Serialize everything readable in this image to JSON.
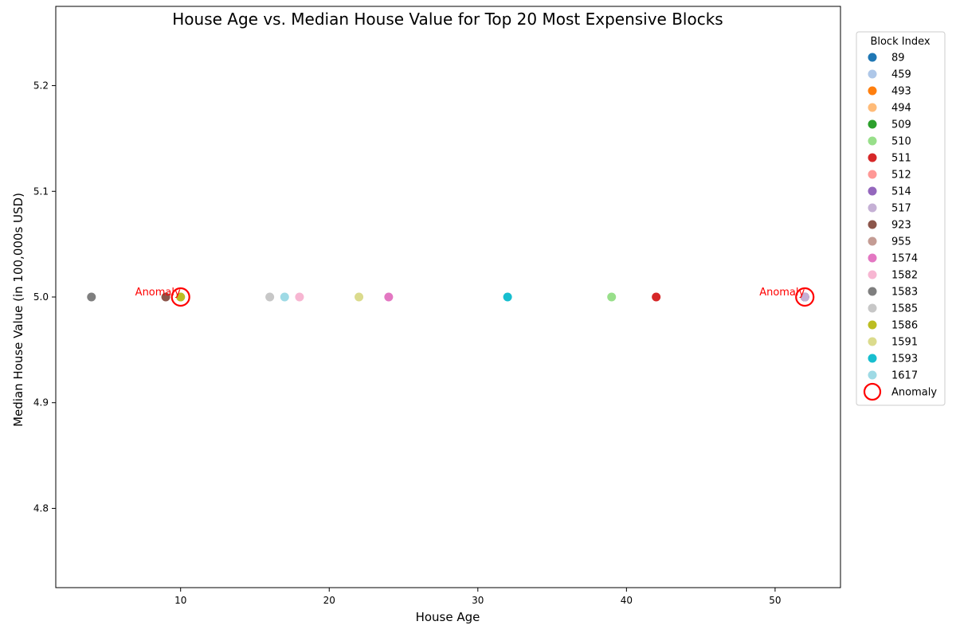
{
  "chart_data": {
    "type": "scatter",
    "title": "House Age vs. Median House Value for Top 20 Most Expensive Blocks",
    "xlabel": "House Age",
    "ylabel": "Median House Value (in 100,000s USD)",
    "xlim": [
      1.6,
      54.4
    ],
    "ylim": [
      4.725,
      5.275
    ],
    "xticks": [
      10,
      20,
      30,
      40,
      50
    ],
    "yticks": [
      4.8,
      4.9,
      5.0,
      5.1,
      5.2
    ],
    "grid": false,
    "legend": {
      "title": "Block Index",
      "placement": "outside-right",
      "anomaly_label": "Anomaly"
    },
    "series": [
      {
        "name": "89",
        "color": "#1f77b4",
        "points": [
          {
            "x": 52,
            "y": 5.0
          }
        ]
      },
      {
        "name": "459",
        "color": "#aec7e8",
        "points": [
          {
            "x": 52,
            "y": 5.0
          }
        ]
      },
      {
        "name": "493",
        "color": "#ff7f0e",
        "points": [
          {
            "x": 52,
            "y": 5.0
          }
        ]
      },
      {
        "name": "494",
        "color": "#ffbb78",
        "points": [
          {
            "x": 52,
            "y": 5.0
          }
        ]
      },
      {
        "name": "509",
        "color": "#2ca02c",
        "points": [
          {
            "x": 52,
            "y": 5.0
          }
        ]
      },
      {
        "name": "510",
        "color": "#98df8a",
        "points": [
          {
            "x": 39,
            "y": 5.0
          }
        ]
      },
      {
        "name": "511",
        "color": "#d62728",
        "points": [
          {
            "x": 42,
            "y": 5.0
          }
        ]
      },
      {
        "name": "512",
        "color": "#ff9896",
        "points": [
          {
            "x": 52,
            "y": 5.0
          }
        ]
      },
      {
        "name": "514",
        "color": "#9467bd",
        "points": [
          {
            "x": 52,
            "y": 5.0
          }
        ]
      },
      {
        "name": "517",
        "color": "#c5b0d5",
        "points": [
          {
            "x": 52,
            "y": 5.0
          }
        ]
      },
      {
        "name": "923",
        "color": "#8c564b",
        "points": [
          {
            "x": 9,
            "y": 5.0
          }
        ]
      },
      {
        "name": "955",
        "color": "#c49c94",
        "points": [
          {
            "x": 10,
            "y": 5.0
          }
        ]
      },
      {
        "name": "1574",
        "color": "#e377c2",
        "points": [
          {
            "x": 24,
            "y": 5.0
          }
        ]
      },
      {
        "name": "1582",
        "color": "#f7b6d2",
        "points": [
          {
            "x": 18,
            "y": 5.0
          }
        ]
      },
      {
        "name": "1583",
        "color": "#7f7f7f",
        "points": [
          {
            "x": 4,
            "y": 5.0
          }
        ]
      },
      {
        "name": "1585",
        "color": "#c7c7c7",
        "points": [
          {
            "x": 16,
            "y": 5.0
          }
        ]
      },
      {
        "name": "1586",
        "color": "#bcbd22",
        "points": [
          {
            "x": 10,
            "y": 5.0
          }
        ]
      },
      {
        "name": "1591",
        "color": "#dbdb8d",
        "points": [
          {
            "x": 22,
            "y": 5.0
          }
        ]
      },
      {
        "name": "1593",
        "color": "#17becf",
        "points": [
          {
            "x": 32,
            "y": 5.0
          }
        ]
      },
      {
        "name": "1617",
        "color": "#9edae5",
        "points": [
          {
            "x": 17,
            "y": 5.0
          }
        ]
      }
    ],
    "anomalies": [
      {
        "x": 10,
        "y": 5.0,
        "label": "Anomaly"
      },
      {
        "x": 52,
        "y": 5.0,
        "label": "Anomaly"
      }
    ],
    "anomaly_color": "#ff0000"
  }
}
